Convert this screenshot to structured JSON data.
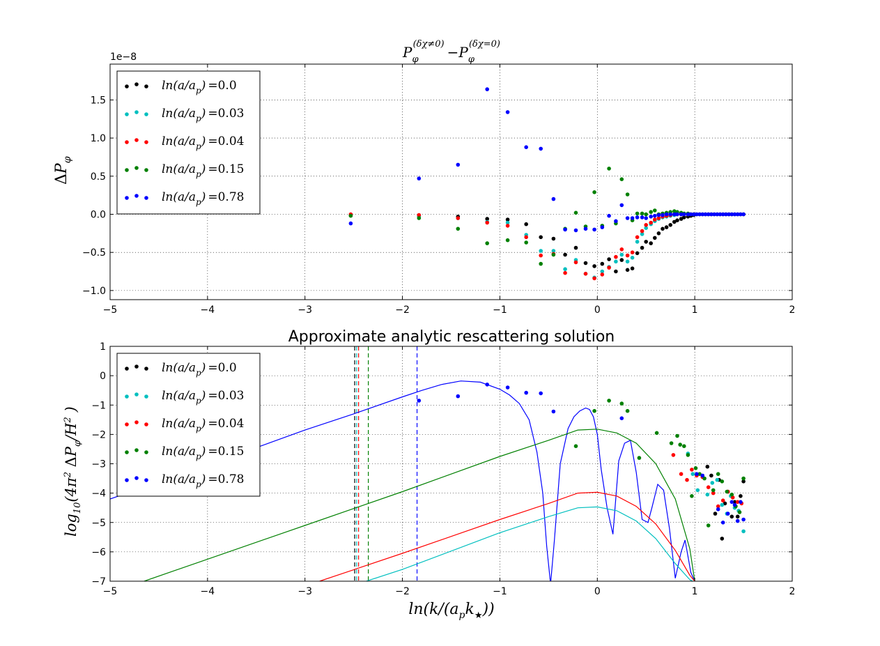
{
  "chart_data": [
    {
      "type": "scatter",
      "title": "P_φ^(δχ≠0) − P_φ^(δχ=0)",
      "ylabel": "ΔP_φ",
      "offset_label": "1e−8",
      "xlim": [
        -5,
        2
      ],
      "ylim": [
        -1.12,
        1.97
      ],
      "xticks": [
        -5,
        -4,
        -3,
        -2,
        -1,
        0,
        1,
        2
      ],
      "xtick_labels": [
        "−5",
        "−4",
        "−3",
        "−2",
        "−1",
        "0",
        "1",
        "2"
      ],
      "yticks": [
        -1.0,
        -0.5,
        0.0,
        0.5,
        1.0,
        1.5
      ],
      "ytick_labels": [
        "−1.0",
        "−0.5",
        "0.0",
        "0.5",
        "1.0",
        "1.5"
      ],
      "grid": true,
      "legend_position": "top-left",
      "series": [
        {
          "name": "ln(a/a_p) = 0.0",
          "color": "#000000",
          "x": [
            -2.53,
            -1.83,
            -1.43,
            -1.13,
            -0.92,
            -0.73,
            -0.58,
            -0.45,
            -0.33,
            -0.22,
            -0.12,
            -0.03,
            0.05,
            0.12,
            0.19,
            0.25,
            0.31,
            0.36,
            0.41,
            0.46,
            0.5,
            0.55,
            0.59,
            0.63,
            0.67,
            0.71,
            0.75,
            0.79,
            0.82,
            0.86,
            0.89,
            0.93,
            0.96,
            0.99,
            1.02,
            1.05,
            1.08,
            1.11,
            1.14,
            1.17,
            1.2,
            1.23,
            1.26,
            1.29,
            1.32,
            1.35,
            1.38,
            1.41,
            1.44,
            1.47,
            1.5
          ],
          "y": [
            -0.01,
            -0.02,
            -0.03,
            -0.06,
            -0.07,
            -0.13,
            -0.3,
            -0.32,
            -0.53,
            -0.44,
            -0.64,
            -0.68,
            -0.65,
            -0.59,
            -0.75,
            -0.6,
            -0.73,
            -0.71,
            -0.51,
            -0.44,
            -0.36,
            -0.38,
            -0.31,
            -0.25,
            -0.19,
            -0.17,
            -0.14,
            -0.1,
            -0.08,
            -0.06,
            -0.04,
            -0.03,
            -0.02,
            -0.01,
            0.0,
            0.0,
            0.0,
            0.0,
            0.0,
            0.0,
            0.0,
            0.0,
            0.0,
            0.0,
            0.0,
            0.0,
            0.0,
            0.0,
            0.0,
            0.0,
            0.0
          ]
        },
        {
          "name": "ln(a/a_p) = 0.03",
          "color": "#00bfbf",
          "x": [
            -2.53,
            -1.83,
            -1.43,
            -1.13,
            -0.92,
            -0.73,
            -0.58,
            -0.45,
            -0.33,
            -0.22,
            -0.12,
            -0.03,
            0.05,
            0.12,
            0.19,
            0.25,
            0.31,
            0.36,
            0.41,
            0.46,
            0.5,
            0.55,
            0.59,
            0.63,
            0.67,
            0.71,
            0.75,
            0.79,
            0.82,
            0.86,
            0.89,
            0.93,
            0.96,
            0.99
          ],
          "y": [
            -0.01,
            -0.03,
            -0.05,
            -0.1,
            -0.11,
            -0.27,
            -0.48,
            -0.48,
            -0.72,
            -0.6,
            -0.78,
            -0.83,
            -0.75,
            -0.69,
            -0.62,
            -0.53,
            -0.62,
            -0.57,
            -0.36,
            -0.26,
            -0.18,
            -0.13,
            -0.09,
            -0.06,
            -0.04,
            -0.03,
            -0.02,
            -0.01,
            0.0,
            0.0,
            0.0,
            0.0,
            0.0,
            0.0
          ]
        },
        {
          "name": "ln(a/a_p) = 0.04",
          "color": "#ff0000",
          "x": [
            -2.53,
            -1.83,
            -1.43,
            -1.13,
            -0.92,
            -0.73,
            -0.58,
            -0.45,
            -0.33,
            -0.22,
            -0.12,
            -0.03,
            0.05,
            0.12,
            0.19,
            0.25,
            0.31,
            0.36,
            0.41,
            0.46,
            0.5,
            0.55,
            0.59,
            0.63,
            0.67,
            0.71,
            0.75,
            0.79,
            0.82,
            0.86,
            0.89,
            0.93,
            0.96,
            0.99
          ],
          "y": [
            0.0,
            -0.01,
            -0.05,
            -0.11,
            -0.15,
            -0.3,
            -0.54,
            -0.52,
            -0.77,
            -0.63,
            -0.78,
            -0.84,
            -0.79,
            -0.7,
            -0.56,
            -0.46,
            -0.54,
            -0.5,
            -0.3,
            -0.22,
            -0.14,
            -0.11,
            -0.07,
            -0.05,
            -0.03,
            -0.02,
            -0.01,
            0.0,
            0.0,
            0.0,
            0.0,
            0.0,
            0.0,
            0.0
          ]
        },
        {
          "name": "ln(a/a_p) = 0.15",
          "color": "#008000",
          "x": [
            -2.53,
            -1.83,
            -1.43,
            -1.13,
            -0.92,
            -0.73,
            -0.58,
            -0.45,
            -0.33,
            -0.22,
            -0.12,
            -0.03,
            0.05,
            0.12,
            0.19,
            0.25,
            0.31,
            0.36,
            0.41,
            0.46,
            0.5,
            0.55,
            0.59,
            0.63,
            0.67,
            0.71,
            0.75,
            0.79,
            0.82,
            0.86,
            0.89,
            0.93,
            0.96,
            0.99
          ],
          "y": [
            -0.02,
            -0.05,
            -0.19,
            -0.38,
            -0.34,
            -0.37,
            -0.65,
            -0.53,
            -0.19,
            0.02,
            -0.16,
            0.29,
            -0.15,
            0.6,
            -0.12,
            0.46,
            0.26,
            -0.08,
            0.01,
            0.01,
            0.0,
            0.03,
            0.05,
            0.0,
            0.01,
            0.02,
            0.03,
            0.04,
            0.03,
            0.02,
            0.01,
            0.01,
            0.0,
            0.0
          ]
        },
        {
          "name": "ln(a/a_p) = 0.78",
          "color": "#0000ff",
          "x": [
            -2.53,
            -1.83,
            -1.43,
            -1.13,
            -0.92,
            -0.73,
            -0.58,
            -0.45,
            -0.33,
            -0.22,
            -0.12,
            -0.03,
            0.05,
            0.12,
            0.19,
            0.25,
            0.31,
            0.36,
            0.41,
            0.46,
            0.5,
            0.55,
            0.59,
            0.63,
            0.67,
            0.71,
            0.75,
            0.79,
            0.82,
            0.86,
            0.89,
            0.93,
            0.96,
            0.99,
            1.02,
            1.05,
            1.08,
            1.11,
            1.14,
            1.17,
            1.2,
            1.23,
            1.26,
            1.29,
            1.32,
            1.35,
            1.38,
            1.41,
            1.44,
            1.47,
            1.5
          ],
          "y": [
            -0.12,
            0.47,
            0.65,
            1.64,
            1.34,
            0.88,
            0.86,
            0.2,
            -0.2,
            -0.21,
            -0.19,
            -0.2,
            -0.17,
            -0.02,
            -0.09,
            0.12,
            -0.05,
            -0.05,
            -0.04,
            -0.04,
            -0.05,
            -0.03,
            -0.02,
            -0.01,
            -0.01,
            0.0,
            0.0,
            0.0,
            0.0,
            0.0,
            0.0,
            0.0,
            0.0,
            0.0,
            0.0,
            0.0,
            0.0,
            0.0,
            0.0,
            0.0,
            0.0,
            0.0,
            0.0,
            0.0,
            0.0,
            0.0,
            0.0,
            0.0,
            0.0,
            0.0,
            0.0
          ]
        }
      ]
    },
    {
      "type": "line",
      "title": "Approximate analytic rescattering solution",
      "xlabel": "ln(k/(a_p k⋆))",
      "ylabel": "log10(4π² ΔP_φ/H²)",
      "xlim": [
        -5,
        2
      ],
      "ylim": [
        -7,
        1
      ],
      "xticks": [
        -5,
        -4,
        -3,
        -2,
        -1,
        0,
        1,
        2
      ],
      "xtick_labels": [
        "−5",
        "−4",
        "−3",
        "−2",
        "−1",
        "0",
        "1",
        "2"
      ],
      "yticks": [
        -7,
        -6,
        -5,
        -4,
        -3,
        -2,
        -1,
        0,
        1
      ],
      "ytick_labels": [
        "−7",
        "−6",
        "−5",
        "−4",
        "−3",
        "−2",
        "−1",
        "0",
        "1"
      ],
      "grid": true,
      "legend_position": "top-left",
      "vlines": [
        {
          "x": -2.49,
          "color": "#000000"
        },
        {
          "x": -2.47,
          "color": "#00bfbf"
        },
        {
          "x": -2.45,
          "color": "#ff0000"
        },
        {
          "x": -2.35,
          "color": "#008000"
        },
        {
          "x": -1.85,
          "color": "#0000ff"
        }
      ],
      "curves": [
        {
          "color": "#0000ff",
          "x": [
            -5.0,
            -4.0,
            -3.0,
            -2.5,
            -2.0,
            -1.8,
            -1.6,
            -1.4,
            -1.2,
            -1.0,
            -0.9,
            -0.8,
            -0.7,
            -0.62,
            -0.56,
            -0.52,
            -0.48,
            -0.44,
            -0.38,
            -0.3,
            -0.24,
            -0.18,
            -0.12,
            -0.08,
            -0.04,
            0.0,
            0.04,
            0.1,
            0.16,
            0.22,
            0.28,
            0.34,
            0.4,
            0.46,
            0.52,
            0.56,
            0.62,
            0.68,
            0.74,
            0.8,
            0.86,
            0.9,
            0.96,
            1.0,
            1.03
          ],
          "y": [
            -4.2,
            -3.05,
            -1.85,
            -1.3,
            -0.72,
            -0.5,
            -0.3,
            -0.18,
            -0.22,
            -0.46,
            -0.66,
            -0.95,
            -1.5,
            -2.6,
            -4.0,
            -5.8,
            -7.1,
            -5.6,
            -3.0,
            -1.8,
            -1.4,
            -1.2,
            -1.1,
            -1.15,
            -1.4,
            -2.0,
            -3.2,
            -4.5,
            -5.4,
            -2.9,
            -2.3,
            -2.2,
            -3.3,
            -4.9,
            -5.0,
            -4.5,
            -3.7,
            -3.9,
            -5.2,
            -6.9,
            -6.0,
            -5.6,
            -6.7,
            -7.0,
            -7.1
          ]
        },
        {
          "color": "#008000",
          "x": [
            -4.65,
            -4.0,
            -3.0,
            -2.0,
            -1.0,
            -0.5,
            -0.2,
            0.0,
            0.2,
            0.4,
            0.6,
            0.8,
            0.95,
            1.0
          ],
          "y": [
            -7.0,
            -6.25,
            -5.1,
            -3.95,
            -2.75,
            -2.2,
            -1.85,
            -1.82,
            -1.95,
            -2.3,
            -3.0,
            -4.2,
            -5.9,
            -7.0
          ]
        },
        {
          "color": "#ff0000",
          "x": [
            -2.85,
            -2.0,
            -1.0,
            -0.5,
            -0.2,
            0.0,
            0.2,
            0.4,
            0.6,
            0.8,
            0.95,
            1.0
          ],
          "y": [
            -7.0,
            -6.05,
            -4.9,
            -4.35,
            -4.0,
            -3.97,
            -4.1,
            -4.45,
            -5.05,
            -5.95,
            -6.8,
            -7.0
          ]
        },
        {
          "color": "#00bfbf",
          "x": [
            -2.37,
            -2.0,
            -1.0,
            -0.5,
            -0.2,
            0.0,
            0.2,
            0.4,
            0.6,
            0.8,
            0.95,
            0.98
          ],
          "y": [
            -7.0,
            -6.6,
            -5.35,
            -4.8,
            -4.5,
            -4.47,
            -4.6,
            -4.95,
            -5.55,
            -6.4,
            -6.95,
            -7.0
          ]
        }
      ],
      "series": [
        {
          "name": "ln(a/a_p) = 0.0",
          "color": "#000000",
          "x": [
            1.13,
            1.17,
            1.21,
            1.25,
            1.28,
            1.31,
            1.34,
            1.38,
            1.41,
            1.44,
            1.47,
            1.5
          ],
          "y": [
            -3.1,
            -3.4,
            -4.7,
            -3.55,
            -5.55,
            -4.35,
            -3.95,
            -4.8,
            -4.3,
            -4.8,
            -4.1,
            -3.6
          ]
        },
        {
          "name": "ln(a/a_p) = 0.03",
          "color": "#00bfbf",
          "x": [
            0.93,
            0.98,
            1.03,
            1.08,
            1.13,
            1.18,
            1.23,
            1.28,
            1.33,
            1.37,
            1.41,
            1.45,
            1.5
          ],
          "y": [
            -2.65,
            -3.35,
            -3.9,
            -3.45,
            -4.05,
            -3.65,
            -3.55,
            -4.4,
            -4.7,
            -4.1,
            -4.5,
            -4.6,
            -5.3
          ]
        },
        {
          "name": "ln(a/a_p) = 0.04",
          "color": "#ff0000",
          "x": [
            0.78,
            0.86,
            0.92,
            0.97,
            1.02,
            1.08,
            1.14,
            1.19,
            1.24,
            1.29,
            1.34,
            1.39,
            1.44,
            1.48
          ],
          "y": [
            -2.7,
            -3.35,
            -3.55,
            -3.2,
            -3.4,
            -3.45,
            -3.8,
            -4.0,
            -4.45,
            -4.25,
            -3.95,
            -4.15,
            -4.3,
            -4.35
          ]
        },
        {
          "name": "ln(a/a_p) = 0.15",
          "color": "#008000",
          "x": [
            -0.22,
            -0.03,
            0.12,
            0.25,
            0.31,
            0.43,
            0.61,
            0.76,
            0.82,
            0.85,
            0.89,
            0.93,
            0.97,
            1.01,
            1.05,
            1.1,
            1.14,
            1.19,
            1.24,
            1.28,
            1.33,
            1.38,
            1.42,
            1.46,
            1.5
          ],
          "y": [
            -2.4,
            -1.2,
            -0.85,
            -0.95,
            -1.2,
            -2.8,
            -1.95,
            -2.3,
            -2.05,
            -2.35,
            -2.4,
            -2.7,
            -4.1,
            -3.15,
            -3.35,
            -3.5,
            -5.1,
            -3.9,
            -3.35,
            -3.6,
            -3.95,
            -4.05,
            -4.45,
            -4.65,
            -3.5
          ]
        },
        {
          "name": "ln(a/a_p) = 0.78",
          "color": "#0000ff",
          "x": [
            -1.83,
            -1.43,
            -1.13,
            -0.92,
            -0.73,
            -0.58,
            -0.45,
            0.25,
            1.02,
            1.08,
            1.24,
            1.29,
            1.34,
            1.38,
            1.41,
            1.44,
            1.47,
            1.5
          ],
          "y": [
            -0.85,
            -0.7,
            -0.3,
            -0.4,
            -0.58,
            -0.6,
            -1.22,
            -1.45,
            -3.35,
            -3.4,
            -4.55,
            -5.0,
            -4.7,
            -4.3,
            -4.4,
            -4.95,
            -4.3,
            -4.9
          ]
        }
      ]
    }
  ]
}
